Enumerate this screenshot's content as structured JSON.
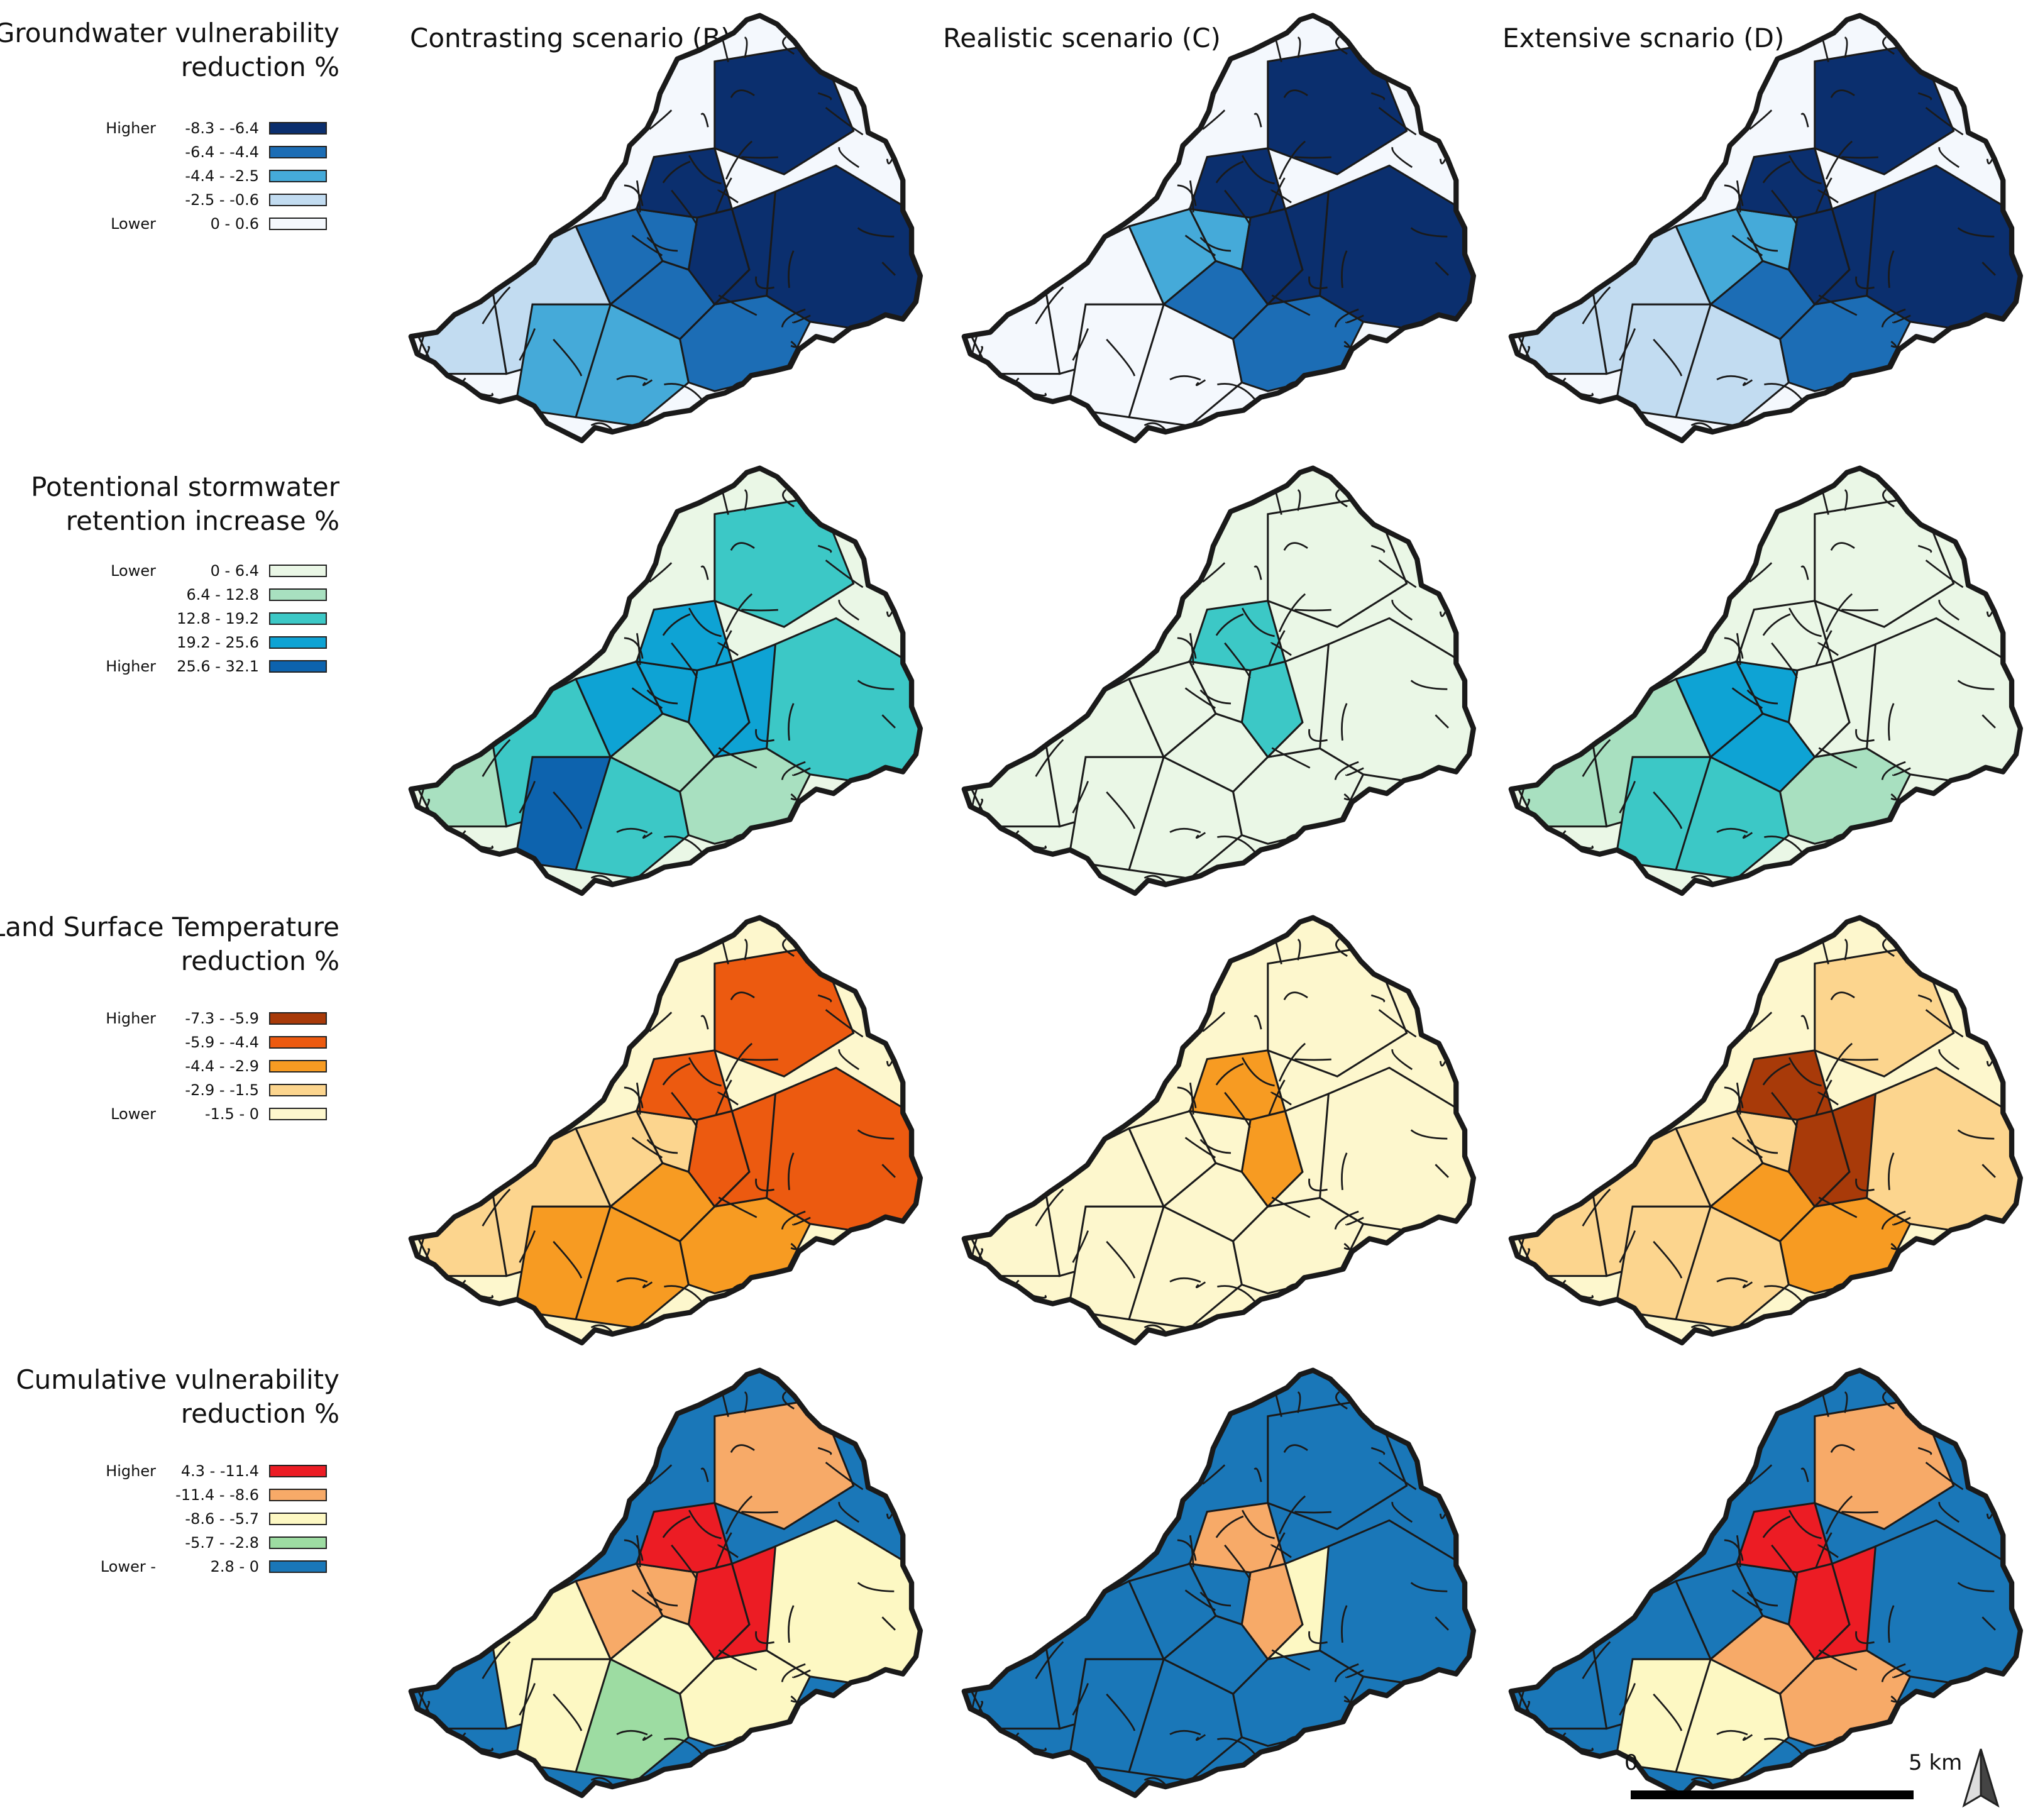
{
  "column_titles": [
    "Contrasting scenario (B)",
    "Realistic  scenario (C)",
    "Extensive scnario (D)"
  ],
  "rows": [
    {
      "title_lines": [
        "Groundwater vulnerability",
        "reduction %"
      ],
      "legend": [
        {
          "rank": "Higher",
          "range": "-8.3 - -6.4",
          "color": "#0b2f6e"
        },
        {
          "rank": "",
          "range": "-6.4 - -4.4",
          "color": "#1c6db5"
        },
        {
          "rank": "",
          "range": "-4.4 - -2.5",
          "color": "#45aad9"
        },
        {
          "rank": "",
          "range": "-2.5 - -0.6",
          "color": "#c2dcf1"
        },
        {
          "rank": "Lower",
          "range": "0 - 0.6",
          "color": "#f4f8fd"
        }
      ]
    },
    {
      "title_lines": [
        "Potentional stormwater",
        "retention increase %"
      ],
      "legend": [
        {
          "rank": "Lower",
          "range": "0 - 6.4",
          "color": "#eaf7e6"
        },
        {
          "rank": "",
          "range": "6.4 - 12.8",
          "color": "#a8e0c0"
        },
        {
          "rank": "",
          "range": "12.8 - 19.2",
          "color": "#3cc8c6"
        },
        {
          "rank": "",
          "range": "19.2 - 25.6",
          "color": "#0ea3d4"
        },
        {
          "rank": "Higher",
          "range": "25.6 - 32.1",
          "color": "#0d63ae"
        }
      ]
    },
    {
      "title_lines": [
        "Land Surface Temperature",
        "reduction %"
      ],
      "legend": [
        {
          "rank": "Higher",
          "range": "-7.3 - -5.9",
          "color": "#a83a09"
        },
        {
          "rank": "",
          "range": "-5.9 - -4.4",
          "color": "#ec5a10"
        },
        {
          "rank": "",
          "range": "-4.4 - -2.9",
          "color": "#f79b22"
        },
        {
          "rank": "",
          "range": "-2.9 - -1.5",
          "color": "#fcd58e"
        },
        {
          "rank": "Lower",
          "range": "-1.5 - 0",
          "color": "#fdf7cd"
        }
      ]
    },
    {
      "title_lines": [
        "Cumulative vulnerability ",
        "reduction %"
      ],
      "legend": [
        {
          "rank": "Higher",
          "range": "4.3 - -11.4",
          "color": "#ec1c24"
        },
        {
          "rank": "",
          "range": "-11.4 - -8.6",
          "color": "#f7aa68"
        },
        {
          "rank": "",
          "range": "-8.6 - -5.7",
          "color": "#fdf8c3"
        },
        {
          "rank": "",
          "range": "-5.7 - -2.8",
          "color": "#9ddca2"
        },
        {
          "rank": "Lower -",
          "range": "2.8 - 0",
          "color": "#1a77b8"
        }
      ]
    }
  ],
  "scale": {
    "start_label": "0",
    "end_label": "5 km"
  },
  "maps": [
    [
      [
        1,
        1,
        2,
        2,
        3,
        3,
        3,
        3,
        4,
        4,
        4,
        4,
        4
      ],
      [
        0,
        0,
        0,
        0,
        2,
        2,
        3,
        3,
        4,
        4,
        4,
        4,
        4
      ],
      [
        1,
        1,
        1,
        1,
        2,
        2,
        3,
        3,
        4,
        4,
        4,
        4,
        4
      ]
    ],
    [
      [
        1,
        2,
        4,
        2,
        3,
        3,
        1,
        1,
        3,
        3,
        3,
        2,
        2
      ],
      [
        0,
        0,
        0,
        0,
        0,
        0,
        0,
        0,
        2,
        2,
        0,
        0,
        0
      ],
      [
        1,
        1,
        2,
        2,
        3,
        3,
        3,
        1,
        0,
        0,
        0,
        0,
        0
      ]
    ],
    [
      [
        1,
        1,
        2,
        2,
        1,
        1,
        2,
        2,
        3,
        3,
        3,
        3,
        3
      ],
      [
        0,
        0,
        0,
        0,
        0,
        0,
        0,
        0,
        2,
        2,
        0,
        0,
        0
      ],
      [
        1,
        1,
        1,
        1,
        1,
        1,
        2,
        2,
        4,
        4,
        4,
        1,
        1
      ]
    ],
    [
      [
        0,
        2,
        2,
        1,
        3,
        3,
        2,
        2,
        4,
        4,
        4,
        3,
        2
      ],
      [
        0,
        0,
        0,
        0,
        0,
        0,
        0,
        0,
        3,
        3,
        2,
        0,
        0
      ],
      [
        0,
        0,
        2,
        2,
        0,
        0,
        3,
        3,
        4,
        4,
        4,
        3,
        0
      ]
    ]
  ]
}
